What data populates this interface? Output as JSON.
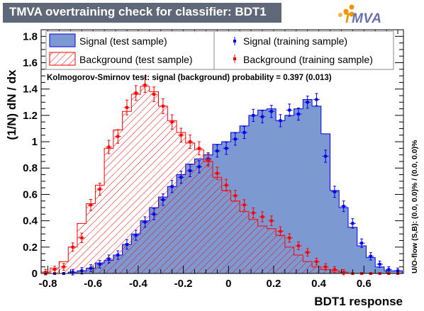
{
  "header": {
    "title": "TMVA overtraining check for classifier: BDT1",
    "logo": {
      "initial": "T",
      "rest": "MVA",
      "orange": "#f29300",
      "purple": "#6a6fb0"
    }
  },
  "ks_text": "Kolmogorov-Smirnov test: signal (background) probability = 0.397 (0.013)",
  "overflow_text": "U/O-flow (S,B): (0.0, 0.0)% / (0.0, 0.0)%",
  "colors": {
    "signal_fill": "#7d99d1",
    "signal_line": "#0000ee",
    "background_line": "#ff0000",
    "frame": "#000000"
  },
  "chart_data": {
    "type": "bar",
    "title": "TMVA overtraining check for classifier: BDT1",
    "xlabel": "BDT1 response",
    "ylabel": "(1/N) dN / dx",
    "xlim": [
      -0.83,
      0.775
    ],
    "ylim": [
      0,
      1.85
    ],
    "x_ticks": [
      "-0.8",
      "-0.6",
      "-0.4",
      "-0.2",
      "0",
      "0.2",
      "0.4",
      "0.6"
    ],
    "y_ticks": [
      "0",
      "0.2",
      "0.4",
      "0.6",
      "0.8",
      "1",
      "1.2",
      "1.4",
      "1.6",
      "1.8"
    ],
    "legend": [
      {
        "key": "signal_test",
        "label": "Signal (test sample)"
      },
      {
        "key": "signal_train",
        "label": "Signal (training sample)"
      },
      {
        "key": "background_test",
        "label": "Background (test sample)"
      },
      {
        "key": "background_train",
        "label": "Background (training sample)"
      }
    ],
    "bin_start": -0.83,
    "bin_width": 0.04,
    "series": [
      {
        "name": "Signal (test sample)",
        "key": "signal_test",
        "kind": "hist",
        "values": [
          0,
          0,
          0,
          0.01,
          0.02,
          0.04,
          0.08,
          0.1,
          0.14,
          0.22,
          0.3,
          0.4,
          0.5,
          0.58,
          0.66,
          0.75,
          0.83,
          0.87,
          0.9,
          0.98,
          1.0,
          1.07,
          1.12,
          1.2,
          1.24,
          1.25,
          1.16,
          1.2,
          1.25,
          1.32,
          1.27,
          1.06,
          0.63,
          0.5,
          0.35,
          0.21,
          0.12,
          0.05,
          0.02,
          0.02
        ]
      },
      {
        "name": "Background (test sample)",
        "key": "background_test",
        "kind": "hist",
        "values": [
          0.01,
          0.04,
          0.09,
          0.2,
          0.38,
          0.53,
          0.67,
          0.95,
          1.09,
          1.23,
          1.36,
          1.42,
          1.38,
          1.27,
          1.16,
          1.07,
          0.99,
          0.94,
          0.85,
          0.73,
          0.63,
          0.55,
          0.47,
          0.41,
          0.36,
          0.34,
          0.29,
          0.2,
          0.14,
          0.09,
          0.05,
          0.03,
          0.02,
          0.01,
          0,
          0,
          0,
          0,
          0,
          0
        ]
      },
      {
        "name": "Signal (training sample)",
        "key": "signal_train",
        "kind": "points",
        "values": [
          0,
          0,
          0,
          0.01,
          0.02,
          0.04,
          0.07,
          0.11,
          0.14,
          0.22,
          0.29,
          0.39,
          0.45,
          0.56,
          0.66,
          0.73,
          0.78,
          0.81,
          0.87,
          0.93,
          0.95,
          1.02,
          1.07,
          1.2,
          1.19,
          1.23,
          1.16,
          1.24,
          1.21,
          1.3,
          1.32,
          0.89,
          0.62,
          0.51,
          0.38,
          0.23,
          0.13,
          0.07,
          0.03,
          0.02
        ],
        "errors": [
          0,
          0,
          0,
          0.005,
          0.008,
          0.01,
          0.012,
          0.014,
          0.016,
          0.02,
          0.022,
          0.024,
          0.026,
          0.028,
          0.03,
          0.03,
          0.03,
          0.03,
          0.03,
          0.03,
          0.03,
          0.03,
          0.03,
          0.03,
          0.03,
          0.03,
          0.03,
          0.03,
          0.03,
          0.03,
          0.03,
          0.03,
          0.026,
          0.024,
          0.02,
          0.016,
          0.012,
          0.008,
          0.005,
          0.005
        ]
      },
      {
        "name": "Background (training sample)",
        "key": "background_train",
        "kind": "points",
        "values": [
          0.01,
          0.03,
          0.05,
          0.2,
          0.27,
          0.52,
          0.64,
          0.96,
          1.04,
          1.26,
          1.37,
          1.43,
          1.36,
          1.27,
          1.15,
          1.05,
          1.0,
          0.95,
          0.86,
          0.76,
          0.67,
          0.59,
          0.52,
          0.46,
          0.43,
          0.4,
          0.32,
          0.27,
          0.21,
          0.16,
          0.09,
          0.05,
          0.03,
          0.01,
          0,
          0,
          0,
          0,
          0,
          0
        ],
        "errors": [
          0.005,
          0.008,
          0.01,
          0.016,
          0.02,
          0.026,
          0.03,
          0.035,
          0.036,
          0.04,
          0.04,
          0.04,
          0.04,
          0.04,
          0.038,
          0.036,
          0.035,
          0.034,
          0.032,
          0.03,
          0.028,
          0.026,
          0.024,
          0.022,
          0.022,
          0.02,
          0.018,
          0.016,
          0.014,
          0.012,
          0.01,
          0.008,
          0.006,
          0.004,
          0,
          0,
          0,
          0,
          0,
          0
        ]
      }
    ]
  }
}
